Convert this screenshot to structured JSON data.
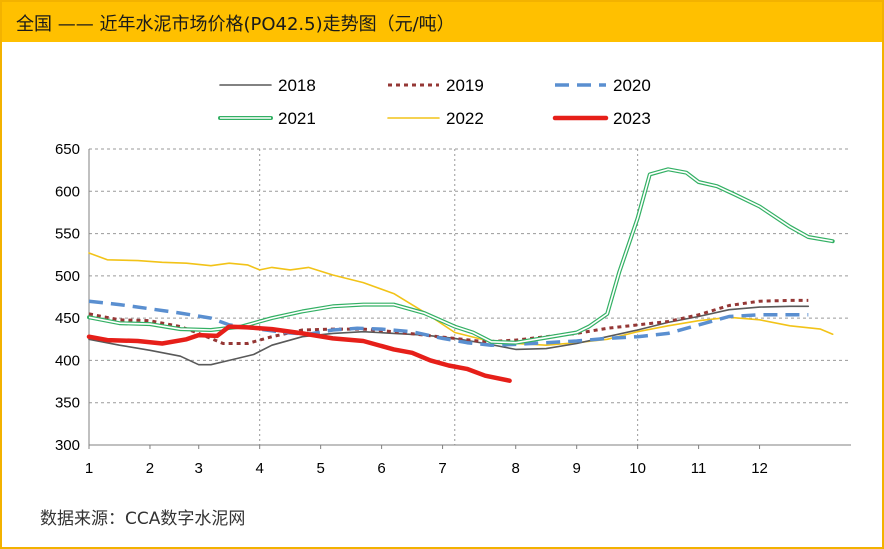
{
  "header": {
    "title": "全国 —— 近年水泥市场价格(PO42.5)走势图（元/吨）"
  },
  "footer": {
    "source": "数据来源：CCA数字水泥网"
  },
  "chart_data": {
    "type": "line",
    "title": "全国 —— 近年水泥市场价格(PO42.5)走势图（元/吨）",
    "ylim": [
      300,
      650
    ],
    "yticks": [
      300,
      350,
      400,
      450,
      500,
      550,
      600,
      650
    ],
    "xlim": [
      1,
      13.5
    ],
    "xticks": [
      "1",
      "2",
      "3",
      "4",
      "5",
      "6",
      "7",
      "8",
      "9",
      "10",
      "11",
      "12"
    ],
    "month_positions": [
      1,
      2,
      2.8,
      3.8,
      4.8,
      5.8,
      6.8,
      8,
      9,
      10,
      11,
      12
    ],
    "vertical_dividers": [
      3.8,
      7.0,
      10.0
    ],
    "grid": true,
    "legend": "top",
    "series": [
      {
        "name": "2018",
        "color": "#595959",
        "style": "solid",
        "points": [
          [
            1,
            425
          ],
          [
            1.5,
            418
          ],
          [
            2,
            412
          ],
          [
            2.5,
            405
          ],
          [
            2.8,
            395
          ],
          [
            3,
            395
          ],
          [
            3.3,
            400
          ],
          [
            3.7,
            407
          ],
          [
            4,
            418
          ],
          [
            4.5,
            428
          ],
          [
            5,
            432
          ],
          [
            5.5,
            434
          ],
          [
            6,
            432
          ],
          [
            6.5,
            430
          ],
          [
            7,
            426
          ],
          [
            7.5,
            420
          ],
          [
            8,
            413
          ],
          [
            8.5,
            414
          ],
          [
            9,
            420
          ],
          [
            9.5,
            428
          ],
          [
            10,
            436
          ],
          [
            10.5,
            445
          ],
          [
            11,
            452
          ],
          [
            11.5,
            460
          ],
          [
            12,
            463
          ],
          [
            12.5,
            464
          ],
          [
            12.8,
            464
          ]
        ]
      },
      {
        "name": "2019",
        "color": "#953735",
        "style": "dot",
        "points": [
          [
            1,
            455
          ],
          [
            1.5,
            448
          ],
          [
            2,
            447
          ],
          [
            2.5,
            440
          ],
          [
            2.8,
            432
          ],
          [
            3.2,
            420
          ],
          [
            3.6,
            420
          ],
          [
            4,
            428
          ],
          [
            4.5,
            436
          ],
          [
            5,
            437
          ],
          [
            5.5,
            437
          ],
          [
            6,
            434
          ],
          [
            6.5,
            430
          ],
          [
            7,
            426
          ],
          [
            7.5,
            422
          ],
          [
            8,
            424
          ],
          [
            8.5,
            428
          ],
          [
            9,
            432
          ],
          [
            9.5,
            438
          ],
          [
            10,
            442
          ],
          [
            10.5,
            446
          ],
          [
            11,
            454
          ],
          [
            11.5,
            465
          ],
          [
            12,
            470
          ],
          [
            12.5,
            471
          ],
          [
            12.8,
            471
          ]
        ]
      },
      {
        "name": "2020",
        "color": "#5a8fd0",
        "style": "dash",
        "points": [
          [
            1,
            470
          ],
          [
            1.5,
            466
          ],
          [
            2,
            461
          ],
          [
            2.5,
            456
          ],
          [
            3,
            450
          ],
          [
            3.3,
            442
          ],
          [
            3.8,
            437
          ],
          [
            4.2,
            433
          ],
          [
            4.6,
            431
          ],
          [
            5,
            436
          ],
          [
            5.4,
            438
          ],
          [
            5.8,
            437
          ],
          [
            6.3,
            434
          ],
          [
            6.8,
            426
          ],
          [
            7.2,
            421
          ],
          [
            7.6,
            418
          ],
          [
            8,
            419
          ],
          [
            8.5,
            421
          ],
          [
            9,
            423
          ],
          [
            9.5,
            426
          ],
          [
            10,
            428
          ],
          [
            10.5,
            432
          ],
          [
            11,
            442
          ],
          [
            11.5,
            452
          ],
          [
            12,
            454
          ],
          [
            12.5,
            454
          ],
          [
            12.8,
            454
          ]
        ]
      },
      {
        "name": "2021",
        "color": "#33b064",
        "style": "double",
        "points": [
          [
            1,
            451
          ],
          [
            1.5,
            444
          ],
          [
            2,
            443
          ],
          [
            2.5,
            437
          ],
          [
            3,
            436
          ],
          [
            3.5,
            440
          ],
          [
            4,
            450
          ],
          [
            4.5,
            458
          ],
          [
            5,
            464
          ],
          [
            5.5,
            466
          ],
          [
            6,
            466
          ],
          [
            6.5,
            456
          ],
          [
            7,
            440
          ],
          [
            7.3,
            433
          ],
          [
            7.6,
            422
          ],
          [
            8,
            421
          ],
          [
            8.5,
            427
          ],
          [
            9,
            433
          ],
          [
            9.2,
            440
          ],
          [
            9.5,
            455
          ],
          [
            9.7,
            505
          ],
          [
            10,
            568
          ],
          [
            10.2,
            620
          ],
          [
            10.5,
            626
          ],
          [
            10.8,
            622
          ],
          [
            11,
            611
          ],
          [
            11.3,
            606
          ],
          [
            11.6,
            596
          ],
          [
            12,
            582
          ],
          [
            12.5,
            558
          ],
          [
            12.8,
            546
          ],
          [
            13.2,
            541
          ]
        ]
      },
      {
        "name": "2022",
        "color": "#f2c318",
        "style": "solid",
        "points": [
          [
            1,
            527
          ],
          [
            1.3,
            519
          ],
          [
            1.8,
            518
          ],
          [
            2.2,
            516
          ],
          [
            2.6,
            515
          ],
          [
            3,
            512
          ],
          [
            3.3,
            515
          ],
          [
            3.6,
            513
          ],
          [
            3.8,
            507
          ],
          [
            4,
            510
          ],
          [
            4.3,
            507
          ],
          [
            4.6,
            510
          ],
          [
            5,
            501
          ],
          [
            5.5,
            492
          ],
          [
            6,
            479
          ],
          [
            6.5,
            457
          ],
          [
            7,
            433
          ],
          [
            7.5,
            424
          ],
          [
            8,
            420
          ],
          [
            8.5,
            418
          ],
          [
            9,
            421
          ],
          [
            9.5,
            425
          ],
          [
            10,
            434
          ],
          [
            10.5,
            441
          ],
          [
            11,
            447
          ],
          [
            11.5,
            451
          ],
          [
            12,
            448
          ],
          [
            12.5,
            441
          ],
          [
            13,
            437
          ],
          [
            13.2,
            431
          ]
        ]
      },
      {
        "name": "2023",
        "color": "#e61f19",
        "style": "bold",
        "points": [
          [
            1,
            428
          ],
          [
            1.3,
            424
          ],
          [
            1.8,
            423
          ],
          [
            2.2,
            420
          ],
          [
            2.6,
            425
          ],
          [
            2.8,
            430
          ],
          [
            3.1,
            429
          ],
          [
            3.3,
            440
          ],
          [
            3.6,
            439
          ],
          [
            4,
            437
          ],
          [
            4.5,
            432
          ],
          [
            5,
            426
          ],
          [
            5.5,
            423
          ],
          [
            6,
            413
          ],
          [
            6.3,
            409
          ],
          [
            6.6,
            400
          ],
          [
            6.9,
            394
          ],
          [
            7.2,
            390
          ],
          [
            7.5,
            382
          ],
          [
            7.9,
            376
          ]
        ]
      }
    ]
  }
}
